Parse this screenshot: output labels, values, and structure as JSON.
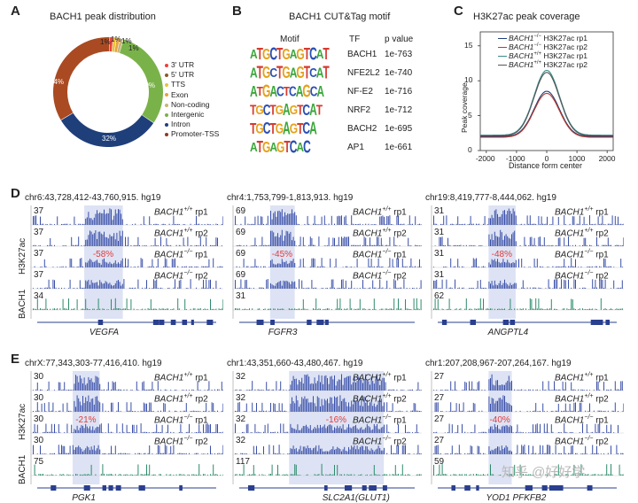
{
  "panels": {
    "A": "A",
    "B": "B",
    "C": "C",
    "D": "D",
    "E": "E"
  },
  "panelA": {
    "title": "BACH1 peak distribution",
    "slice_labels": [
      "1%",
      "1%",
      "1%",
      "1%",
      "30%",
      "32%",
      "34%"
    ],
    "legend": [
      {
        "label": "3' UTR",
        "color": "#e8423c"
      },
      {
        "label": "5' UTR",
        "color": "#8c5a2b"
      },
      {
        "label": "TTS",
        "color": "#e7c43a"
      },
      {
        "label": "Exon",
        "color": "#e8a33a"
      },
      {
        "label": "Non-coding",
        "color": "#c8b57a"
      },
      {
        "label": "Intergenic",
        "color": "#7ab24a"
      },
      {
        "label": "Intron",
        "color": "#1f3f7a"
      },
      {
        "label": "Promoter-TSS",
        "color": "#8a3a25"
      }
    ]
  },
  "panelB": {
    "title": "BACH1 CUT&Tag motif",
    "headers": {
      "motif": "Motif",
      "tf": "TF",
      "p": "p value"
    },
    "rows": [
      {
        "tf": "BACH1",
        "p": "1e-763",
        "seq": "ATGCTGAGTCAT"
      },
      {
        "tf": "NFE2L2",
        "p": "1e-740",
        "seq": "ATGCTGAGTCAT"
      },
      {
        "tf": "NF-E2",
        "p": "1e-716",
        "seq": "ATGACTCAGCA"
      },
      {
        "tf": "NRF2",
        "p": "1e-712",
        "seq": "TGCTGAGTCAT"
      },
      {
        "tf": "BACH2",
        "p": "1e-695",
        "seq": "TGCTGAGTCA"
      },
      {
        "tf": "AP1",
        "p": "1e-661",
        "seq": "ATGAGTCAC"
      }
    ]
  },
  "panelC": {
    "title": "H3K27ac peak coverage",
    "legend": [
      {
        "gene": "BACH1",
        "sup": "−/−",
        "rest": " H3K27ac rp1",
        "color": "#1f3f7a"
      },
      {
        "gene": "BACH1",
        "sup": "−/−",
        "rest": " H3K27ac rp2",
        "color": "#c0392b"
      },
      {
        "gene": "BACH1",
        "sup": "+/+",
        "rest": " H3K27ac rp1",
        "color": "#3a8a8a"
      },
      {
        "gene": "BACH1",
        "sup": "+/+",
        "rest": " H3K27ac rp2",
        "color": "#555555"
      }
    ],
    "ylabel": "Peak coverage",
    "xlabel": "Distance form center",
    "yticks": [
      "0",
      "5",
      "10",
      "15"
    ],
    "xticks": [
      "-2000",
      "-1000",
      "0",
      "1000",
      "2000"
    ]
  },
  "tracks": {
    "labels": [
      {
        "gene": "BACH1",
        "sup": "+/+",
        "rp": " rp1"
      },
      {
        "gene": "BACH1",
        "sup": "+/+",
        "rp": " rp2"
      },
      {
        "gene": "BACH1",
        "sup": "−/−",
        "rp": " rp1"
      },
      {
        "gene": "BACH1",
        "sup": "−/−",
        "rp": " rp2"
      }
    ],
    "ylab_h3k27ac": "H3K27ac",
    "ylab_bach1": "BACH1"
  },
  "panelD": [
    {
      "region": "chr6:43,728,412-43,760,915. hg19",
      "scales": [
        "37",
        "37",
        "37",
        "37",
        "34"
      ],
      "pct": "-58%",
      "gene": "VEGFA"
    },
    {
      "region": "chr4:1,753,799-1,813,913. hg19",
      "scales": [
        "69",
        "69",
        "69",
        "69",
        "31"
      ],
      "pct": "-45%",
      "gene": "FGFR3"
    },
    {
      "region": "chr19:8,419,777-8,444,062. hg19",
      "scales": [
        "31",
        "31",
        "31",
        "31",
        "62"
      ],
      "pct": "-48%",
      "gene": "ANGPTL4"
    }
  ],
  "panelE": [
    {
      "region": "chrX:77,343,303-77,416,410. hg19",
      "scales": [
        "30",
        "30",
        "30",
        "30",
        "75"
      ],
      "pct": "-21%",
      "gene": "PGK1"
    },
    {
      "region": "chr1:43,351,660-43,480,467. hg19",
      "scales": [
        "32",
        "32",
        "32",
        "32",
        "117"
      ],
      "pct": "-16%",
      "gene": "SLC2A1(GLUT1)"
    },
    {
      "region": "chr1:207,208,967-207,264,167. hg19",
      "scales": [
        "27",
        "27",
        "27",
        "27",
        "59"
      ],
      "pct": "-40%",
      "gene": "YOD1  PFKFB2"
    }
  ],
  "watermark": "知乎 @好好学"
}
